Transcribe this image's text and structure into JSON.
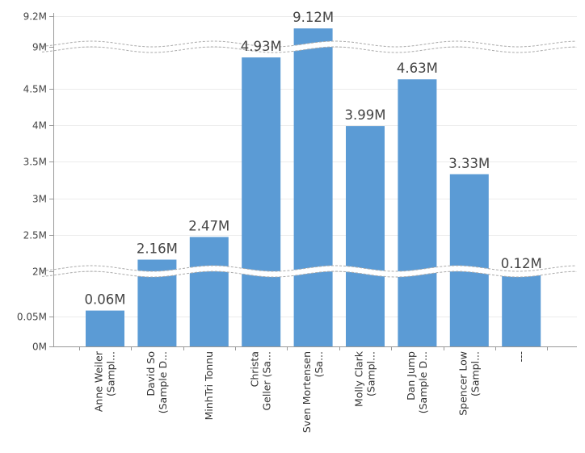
{
  "chart_data": {
    "type": "bar",
    "title": "",
    "xlabel": "",
    "ylabel": "",
    "bar_color": "#5b9bd5",
    "categories": [
      [
        "Anne Weiler",
        "(Sampl..."
      ],
      [
        "David So",
        "(Sample D..."
      ],
      [
        "MinhTri Tonnu"
      ],
      [
        "Christa",
        "Geller (Sa..."
      ],
      [
        "Sven Mortensen",
        "(Sa..."
      ],
      [
        "Molly Clark",
        "(Sampl..."
      ],
      [
        "Dan Jump",
        "(Sample D..."
      ],
      [
        "Spencer Low",
        "(Sampl..."
      ],
      [
        "---"
      ]
    ],
    "values": [
      0.06,
      2.16,
      2.47,
      4.93,
      9.12,
      3.99,
      4.63,
      3.33,
      0.12
    ],
    "data_labels": [
      "0.06M",
      "2.16M",
      "2.47M",
      "4.93M",
      "9.12M",
      "3.99M",
      "4.63M",
      "3.33M",
      "0.12M"
    ],
    "y_axis_segments": [
      {
        "range": [
          0,
          0.075
        ],
        "ticks": [
          0,
          0.05
        ],
        "tick_labels": [
          "0M",
          "0.05M"
        ]
      },
      {
        "range": [
          1.9,
          5.0
        ],
        "ticks": [
          2,
          2.5,
          3,
          3.5,
          4,
          4.5
        ],
        "tick_labels": [
          "2M",
          "2.5M",
          "3M",
          "3.5M",
          "4M",
          "4.5M"
        ]
      },
      {
        "range": [
          8.95,
          9.2
        ],
        "ticks": [
          9,
          9.2
        ],
        "tick_labels": [
          "9M",
          "9.2M"
        ]
      }
    ],
    "axis_breaks": [
      [
        0.075,
        1.9
      ],
      [
        5.0,
        8.95
      ]
    ],
    "grid": true,
    "legend": "none"
  }
}
